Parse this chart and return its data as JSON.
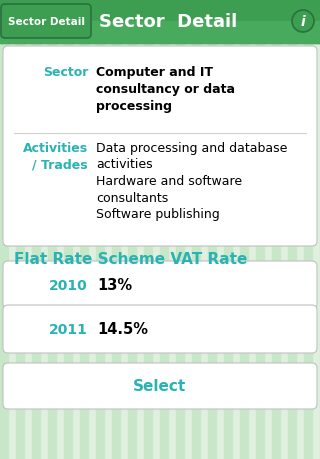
{
  "bg_color": "#dff0df",
  "stripe_color": "#c8e6c8",
  "header_bg_top": "#4aaa5c",
  "header_bg_bot": "#2d8a3e",
  "header_text": "Sector  Detail",
  "header_back_btn": "Sector Detail",
  "header_info_icon": "i",
  "teal": "#2ab3b3",
  "card_bg": "#ffffff",
  "card_border": "#c0c0c0",
  "divider_color": "#d0d0d0",
  "sector_label": "Sector",
  "sector_value": "Computer and IT\nconsultancy or data\nprocessing",
  "activities_label": "Activities\n/ Trades",
  "activities_line1": "Data processing and database",
  "activities_line2": "activities",
  "activities_line3": "Hardware and software",
  "activities_line4": "consultants",
  "activities_line5": "Software publishing",
  "flat_rate_title": "Flat Rate Scheme VAT Rate",
  "rate_rows": [
    {
      "year": "2010",
      "rate": "13%"
    },
    {
      "year": "2011",
      "rate": "14.5%"
    }
  ],
  "select_btn_text": "Select",
  "fig_width": 3.2,
  "fig_height": 4.6,
  "dpi": 100
}
